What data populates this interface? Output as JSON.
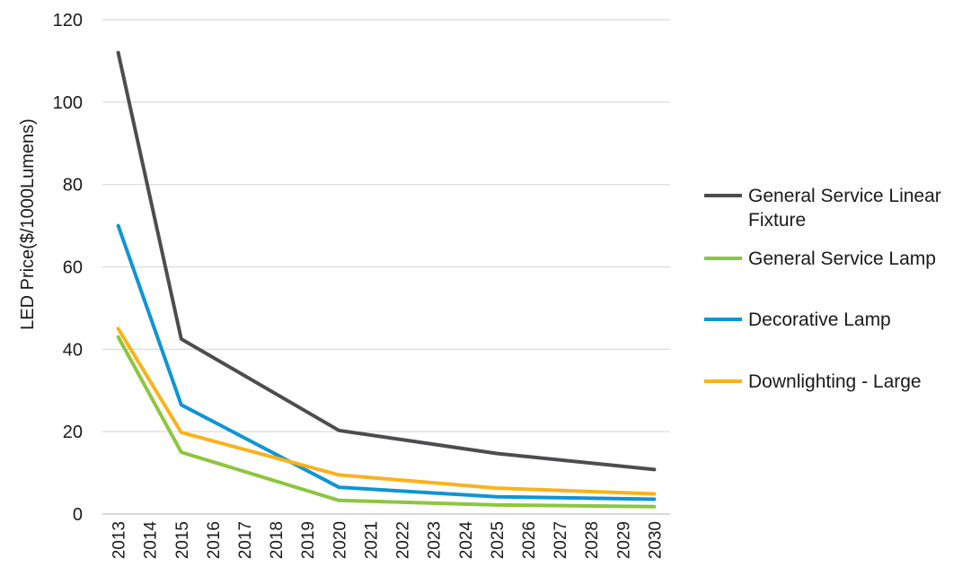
{
  "chart_data": {
    "type": "line",
    "title": "",
    "xlabel": "",
    "ylabel": "LED Price($/1000Lumens)",
    "x": [
      "2013",
      "2014",
      "2015",
      "2016",
      "2017",
      "2018",
      "2019",
      "2020",
      "2021",
      "2022",
      "2023",
      "2024",
      "2025",
      "2026",
      "2027",
      "2028",
      "2029",
      "2030"
    ],
    "ylim": [
      0,
      120
    ],
    "yticks": [
      0,
      20,
      40,
      60,
      80,
      100,
      120
    ],
    "grid": true,
    "legend": "right",
    "series": [
      {
        "name": "General Service Linear Fixture",
        "legend_lines": [
          "General Service Linear",
          "Fixture"
        ],
        "color": "#4d4d4f",
        "values": [
          112,
          null,
          42.5,
          null,
          null,
          null,
          null,
          20.3,
          null,
          null,
          null,
          null,
          14.7,
          null,
          null,
          null,
          null,
          10.8
        ]
      },
      {
        "name": "General Service Lamp",
        "legend_lines": [
          "General Service Lamp"
        ],
        "color": "#8dc63f",
        "values": [
          43,
          null,
          15,
          null,
          null,
          null,
          null,
          3.3,
          null,
          null,
          null,
          null,
          2.2,
          null,
          null,
          null,
          null,
          1.8
        ]
      },
      {
        "name": "Decorative Lamp",
        "legend_lines": [
          "Decorative Lamp"
        ],
        "color": "#0f95d4",
        "values": [
          70,
          null,
          26.5,
          null,
          null,
          null,
          null,
          6.5,
          null,
          null,
          null,
          null,
          4.2,
          null,
          null,
          null,
          null,
          3.6
        ]
      },
      {
        "name": "Downlighting - Large",
        "legend_lines": [
          "Downlighting - Large"
        ],
        "color": "#fbb21b",
        "values": [
          45,
          null,
          19.8,
          null,
          null,
          null,
          null,
          9.5,
          null,
          null,
          null,
          null,
          6.3,
          null,
          null,
          null,
          null,
          4.9
        ]
      }
    ]
  }
}
